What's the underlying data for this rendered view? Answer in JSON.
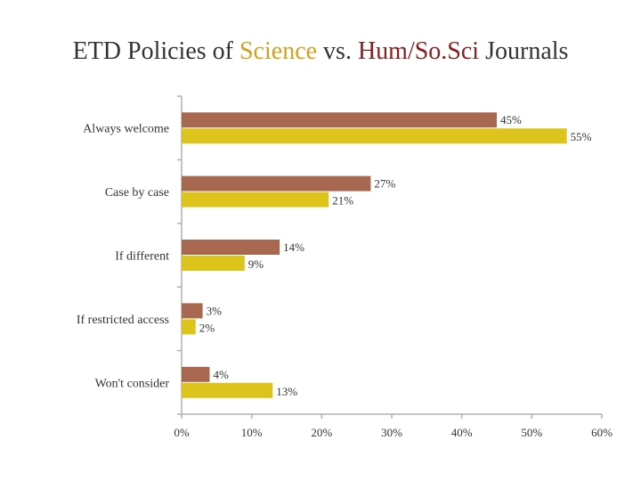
{
  "title": {
    "part1": "ETD Policies of ",
    "science": "Science",
    "part2": " vs. ",
    "hum": "Hum/So.Sci",
    "part3": " Journals"
  },
  "colors": {
    "humanities": "#a86850",
    "science": "#dcc41c",
    "axis": "#b0b0b0"
  },
  "chart_data": {
    "type": "bar",
    "orientation": "horizontal",
    "categories": [
      "Always welcome",
      "Case by case",
      "If different",
      "If restricted access",
      "Won't consider"
    ],
    "series": [
      {
        "values": [
          45,
          27,
          14,
          3,
          4
        ],
        "color": "#a86850"
      },
      {
        "values": [
          55,
          21,
          9,
          2,
          13
        ],
        "color": "#dcc41c"
      }
    ],
    "data_labels": [
      [
        "45%",
        "27%",
        "14%",
        "3%",
        "4%"
      ],
      [
        "55%",
        "21%",
        "9%",
        "2%",
        "13%"
      ]
    ],
    "xlim": [
      0,
      60
    ],
    "xticks": [
      0,
      10,
      20,
      30,
      40,
      50,
      60
    ],
    "xtick_labels": [
      "0%",
      "10%",
      "20%",
      "30%",
      "40%",
      "50%",
      "60%"
    ],
    "grid": false,
    "legend": "none"
  }
}
